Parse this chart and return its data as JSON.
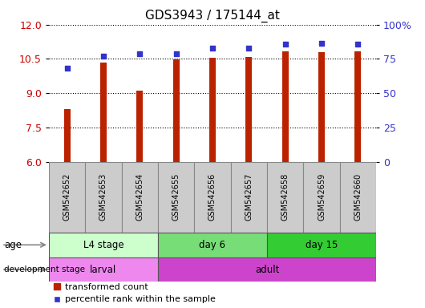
{
  "title": "GDS3943 / 175144_at",
  "samples": [
    "GSM542652",
    "GSM542653",
    "GSM542654",
    "GSM542655",
    "GSM542656",
    "GSM542657",
    "GSM542658",
    "GSM542659",
    "GSM542660"
  ],
  "transformed_count": [
    8.3,
    10.35,
    9.1,
    10.47,
    10.55,
    10.6,
    10.82,
    10.8,
    10.82
  ],
  "percentile_rank": [
    68,
    77,
    78.5,
    79,
    83,
    83,
    86,
    86.5,
    86
  ],
  "ylim_left": [
    6,
    12
  ],
  "ylim_right": [
    0,
    100
  ],
  "yticks_left": [
    6,
    7.5,
    9,
    10.5,
    12
  ],
  "yticks_right": [
    0,
    25,
    50,
    75,
    100
  ],
  "ytick_labels_right": [
    "0",
    "25",
    "50",
    "75",
    "100%"
  ],
  "bar_color": "#bb2200",
  "dot_color": "#3333cc",
  "bar_width": 0.18,
  "grid_color": "#000000",
  "sample_box_color": "#cccccc",
  "age_groups": [
    {
      "label": "L4 stage",
      "start": 0,
      "end": 3,
      "color": "#ccffcc"
    },
    {
      "label": "day 6",
      "start": 3,
      "end": 6,
      "color": "#77dd77"
    },
    {
      "label": "day 15",
      "start": 6,
      "end": 9,
      "color": "#33cc33"
    }
  ],
  "dev_groups": [
    {
      "label": "larval",
      "start": 0,
      "end": 3,
      "color": "#ee88ee"
    },
    {
      "label": "adult",
      "start": 3,
      "end": 9,
      "color": "#cc44cc"
    }
  ],
  "legend_bar_label": "transformed count",
  "legend_dot_label": "percentile rank within the sample",
  "axis_label_color_left": "#cc0000",
  "axis_label_color_right": "#3333cc",
  "background_color": "#ffffff"
}
